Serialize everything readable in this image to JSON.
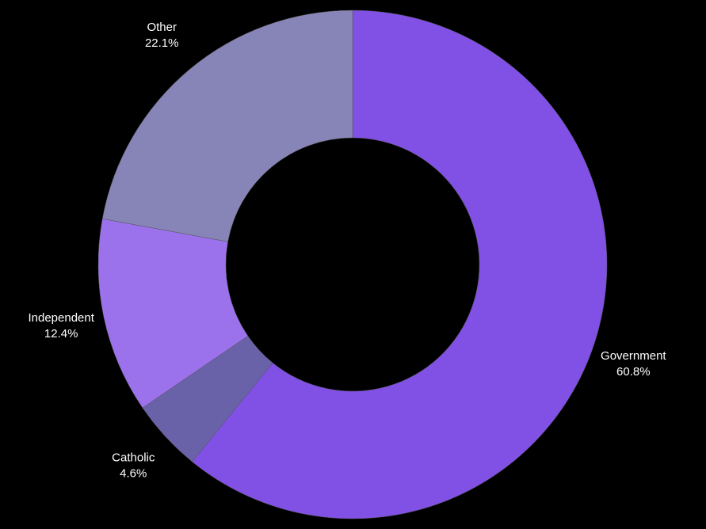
{
  "chart_data": {
    "type": "donut",
    "categories": [
      "Government",
      "Catholic",
      "Independent",
      "Other"
    ],
    "values": [
      60.8,
      4.6,
      12.4,
      22.1
    ],
    "value_labels": [
      "60.8%",
      "4.6%",
      "12.4%",
      "22.1%"
    ],
    "colors": [
      "#8150e4",
      "#6a62a8",
      "#9b72ec",
      "#8785b8"
    ]
  }
}
